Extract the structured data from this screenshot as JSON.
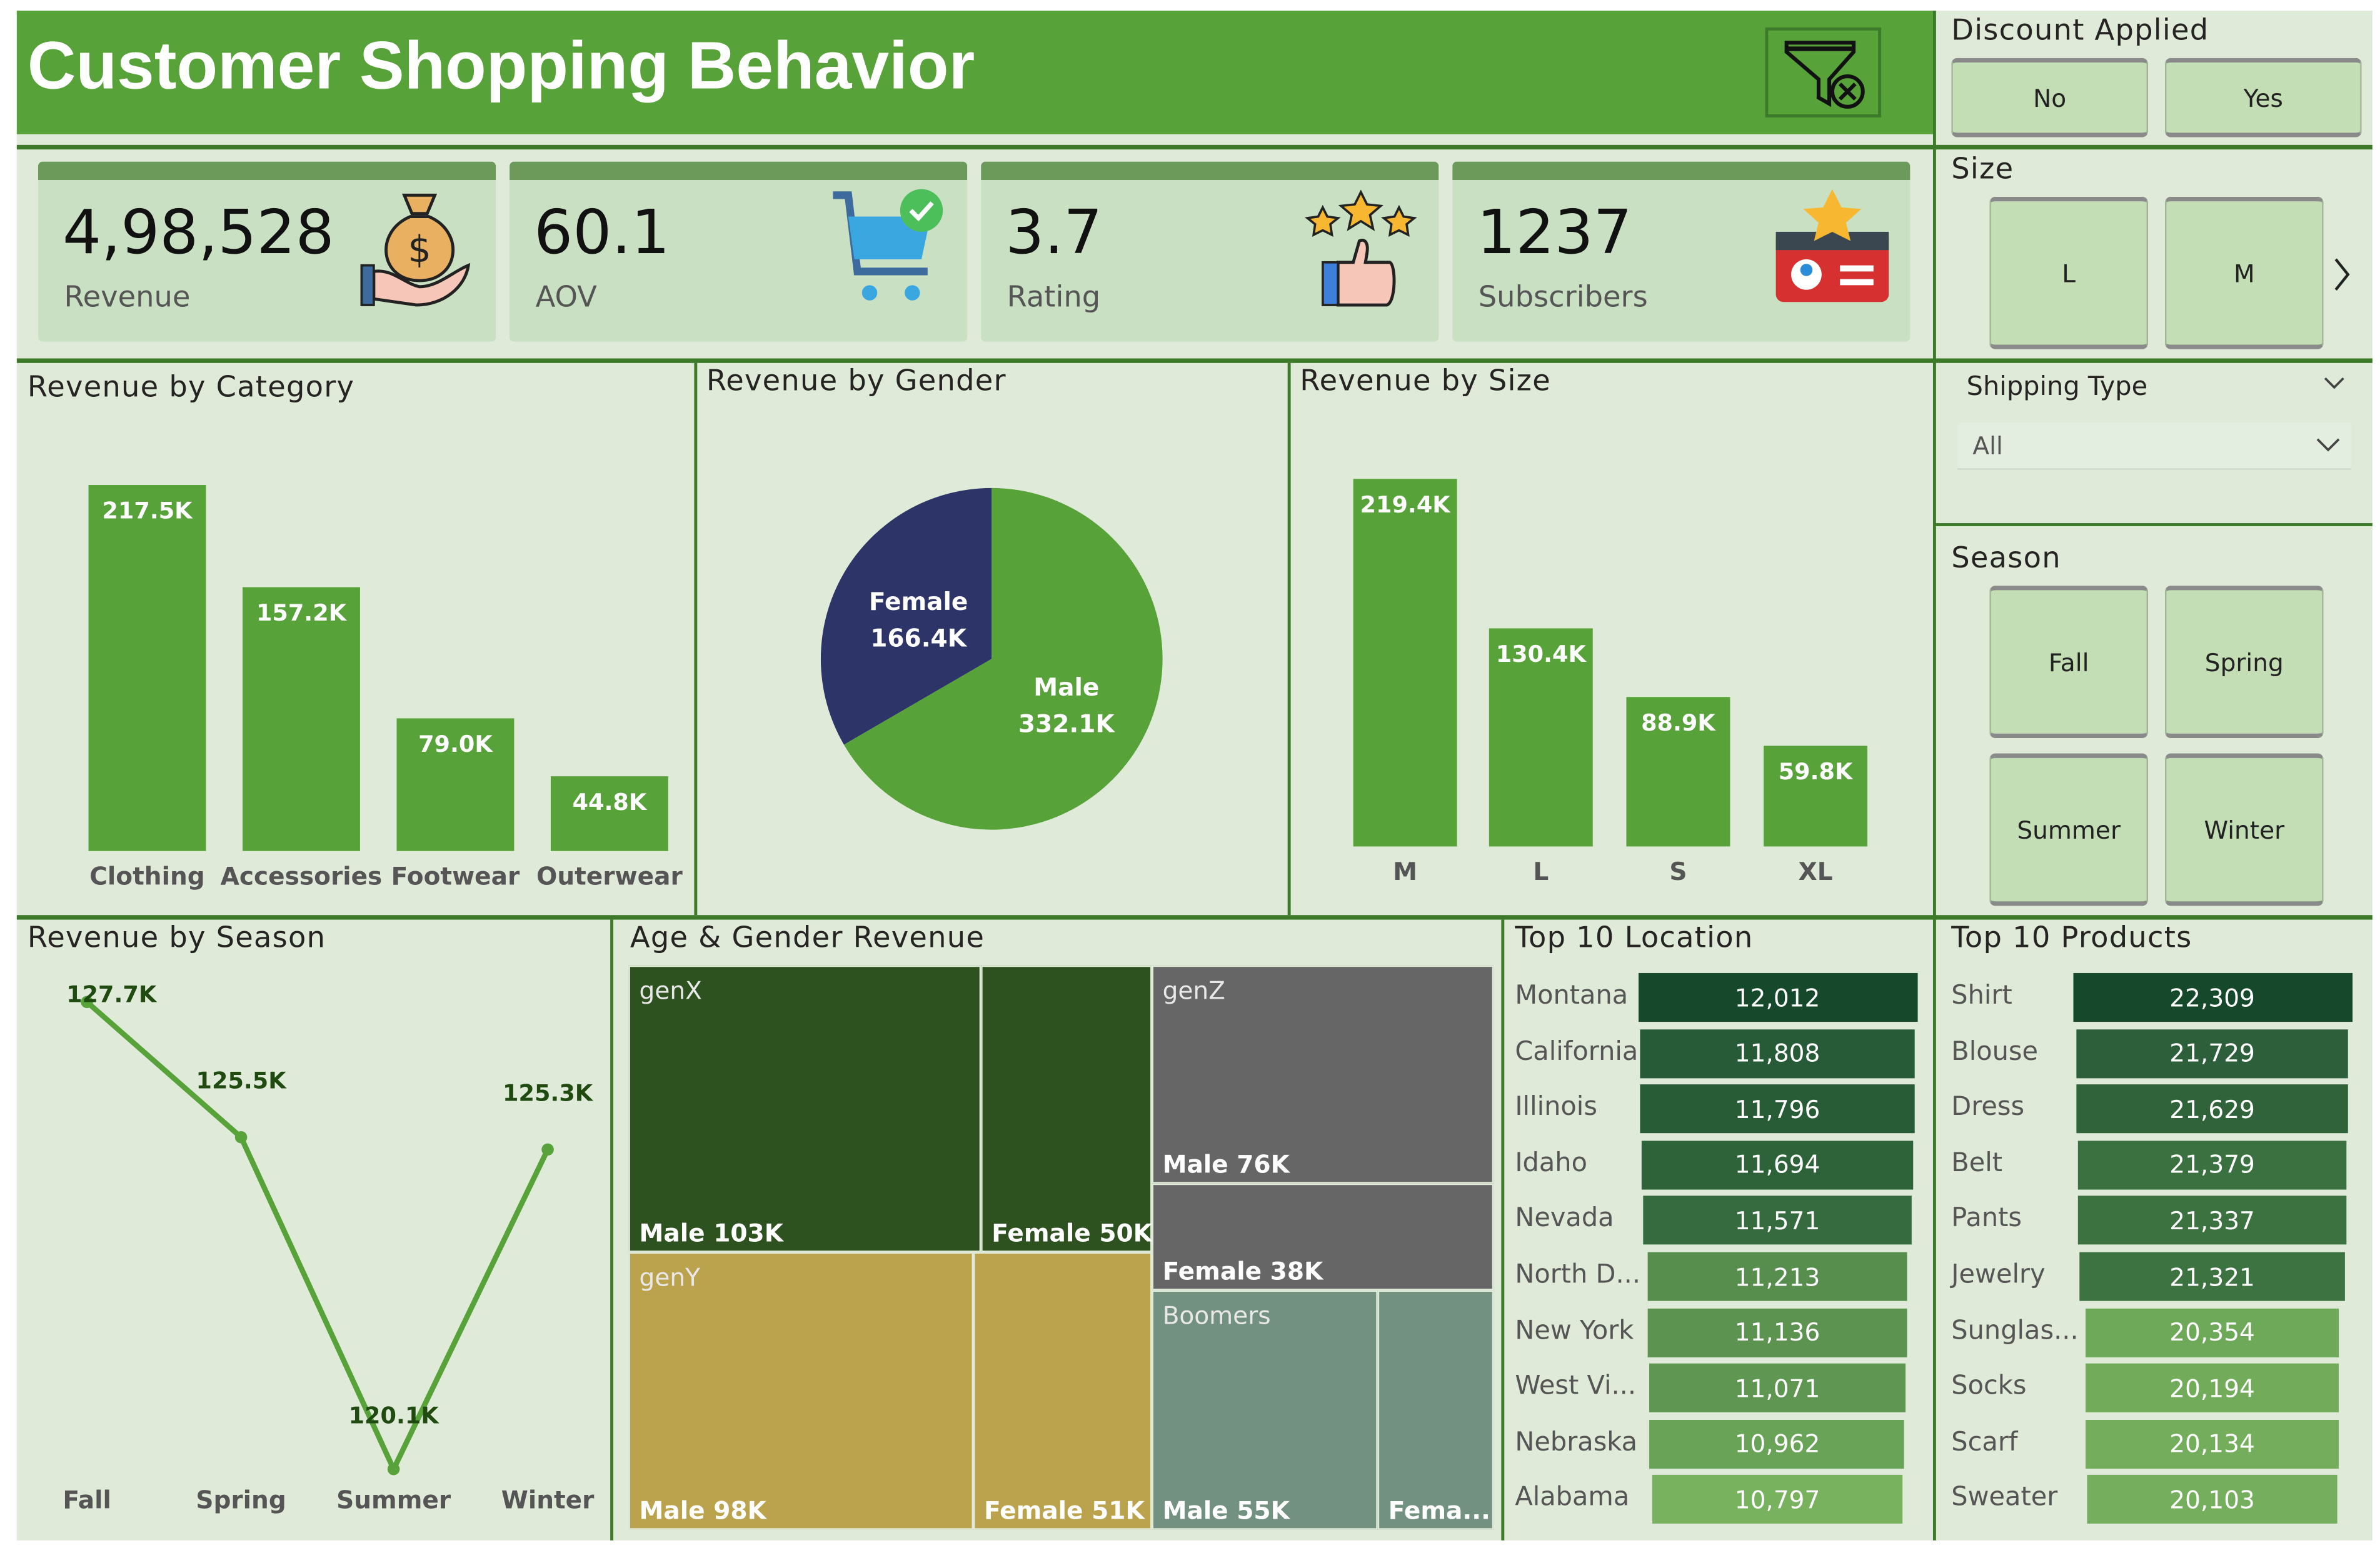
{
  "header": {
    "title": "Customer Shopping Behavior",
    "clear_filter_icon": "filter-clear-icon",
    "bg_color": "#58a23a"
  },
  "kpis": [
    {
      "value": "4,98,528",
      "label": "Revenue",
      "icon": "money-bag-hand-icon"
    },
    {
      "value": "60.1",
      "label": "AOV",
      "icon": "shopping-cart-check-icon"
    },
    {
      "value": "3.7",
      "label": "Rating",
      "icon": "thumbs-up-stars-icon"
    },
    {
      "value": "1237",
      "label": "Subscribers",
      "icon": "subscriber-card-icon"
    }
  ],
  "slicers": {
    "discount": {
      "title": "Discount Applied",
      "options": [
        "No",
        "Yes"
      ]
    },
    "size": {
      "title": "Size",
      "options": [
        "L",
        "M"
      ],
      "next_icon": "chevron-right-icon"
    },
    "shipping": {
      "title": "Shipping Type",
      "selected": "All"
    },
    "season": {
      "title": "Season",
      "options": [
        "Fall",
        "Spring",
        "Summer",
        "Winter"
      ]
    }
  },
  "chart_data": [
    {
      "type": "bar",
      "title": "Revenue by Category",
      "categories": [
        "Clothing",
        "Accessories",
        "Footwear",
        "Outerwear"
      ],
      "values": [
        217.5,
        157.2,
        79.0,
        44.8
      ],
      "labels": [
        "217.5K",
        "157.2K",
        "79.0K",
        "44.8K"
      ],
      "color": "#58a23a"
    },
    {
      "type": "pie",
      "title": "Revenue by Gender",
      "categories": [
        "Female",
        "Male"
      ],
      "values": [
        166.4,
        332.1
      ],
      "labels": [
        "166.4K",
        "332.1K"
      ],
      "colors": [
        "#2d3468",
        "#58a23a"
      ]
    },
    {
      "type": "bar",
      "title": "Revenue by Size",
      "categories": [
        "M",
        "L",
        "S",
        "XL"
      ],
      "values": [
        219.4,
        130.4,
        88.9,
        59.8
      ],
      "labels": [
        "219.4K",
        "130.4K",
        "88.9K",
        "59.8K"
      ],
      "color": "#58a23a"
    },
    {
      "type": "line",
      "title": "Revenue by Season",
      "categories": [
        "Fall",
        "Spring",
        "Summer",
        "Winter"
      ],
      "values": [
        127.7,
        125.5,
        120.1,
        125.3
      ],
      "labels": [
        "127.7K",
        "125.5K",
        "120.1K",
        "125.3K"
      ],
      "color": "#58a23a"
    },
    {
      "type": "treemap",
      "title": "Age & Gender Revenue",
      "groups": [
        {
          "name": "genX",
          "color": "#2e5120",
          "items": [
            {
              "label": "Male 103K",
              "value": 103
            },
            {
              "label": "Female 50K",
              "value": 50
            }
          ]
        },
        {
          "name": "genY",
          "color": "#bba24c",
          "items": [
            {
              "label": "Male 98K",
              "value": 98
            },
            {
              "label": "Female 51K",
              "value": 51
            }
          ]
        },
        {
          "name": "genZ",
          "color": "#666666",
          "items": [
            {
              "label": "Male 76K",
              "value": 76
            },
            {
              "label": "Female 38K",
              "value": 38
            }
          ]
        },
        {
          "name": "Boomers",
          "color": "#739181",
          "items": [
            {
              "label": "Male 55K",
              "value": 55
            },
            {
              "label": "Fema...",
              "value": 30
            }
          ]
        }
      ]
    },
    {
      "type": "table",
      "title": "Top 10 Location",
      "rows": [
        {
          "name": "Montana",
          "value": 12012,
          "label": "12,012",
          "color": "#16482b"
        },
        {
          "name": "California",
          "value": 11808,
          "label": "11,808",
          "color": "#275b37"
        },
        {
          "name": "Illinois",
          "value": 11796,
          "label": "11,796",
          "color": "#285c37"
        },
        {
          "name": "Idaho",
          "value": 11694,
          "label": "11,694",
          "color": "#2e633a"
        },
        {
          "name": "Nevada",
          "value": 11571,
          "label": "11,571",
          "color": "#356b3e"
        },
        {
          "name": "North D...",
          "value": 11213,
          "label": "11,213",
          "color": "#578e4e"
        },
        {
          "name": "New York",
          "value": 11136,
          "label": "11,136",
          "color": "#5c9351"
        },
        {
          "name": "West Vi...",
          "value": 11071,
          "label": "11,071",
          "color": "#5f9752"
        },
        {
          "name": "Nebraska",
          "value": 10962,
          "label": "10,962",
          "color": "#69a357"
        },
        {
          "name": "Alabama",
          "value": 10797,
          "label": "10,797",
          "color": "#78b25f"
        }
      ]
    },
    {
      "type": "table",
      "title": "Top 10 Products",
      "rows": [
        {
          "name": "Shirt",
          "value": 22309,
          "label": "22,309",
          "color": "#16482b"
        },
        {
          "name": "Blouse",
          "value": 21729,
          "label": "21,729",
          "color": "#2c5f3a"
        },
        {
          "name": "Dress",
          "value": 21629,
          "label": "21,629",
          "color": "#306339"
        },
        {
          "name": "Belt",
          "value": 21379,
          "label": "21,379",
          "color": "#3b7040"
        },
        {
          "name": "Pants",
          "value": 21337,
          "label": "21,337",
          "color": "#3c7140"
        },
        {
          "name": "Jewelry",
          "value": 21321,
          "label": "21,321",
          "color": "#3d7241"
        },
        {
          "name": "Sunglas...",
          "value": 20354,
          "label": "20,354",
          "color": "#6ea859"
        },
        {
          "name": "Socks",
          "value": 20194,
          "label": "20,194",
          "color": "#72ac5b"
        },
        {
          "name": "Scarf",
          "value": 20134,
          "label": "20,134",
          "color": "#74ae5c"
        },
        {
          "name": "Sweater",
          "value": 20103,
          "label": "20,103",
          "color": "#75af5d"
        }
      ]
    }
  ]
}
